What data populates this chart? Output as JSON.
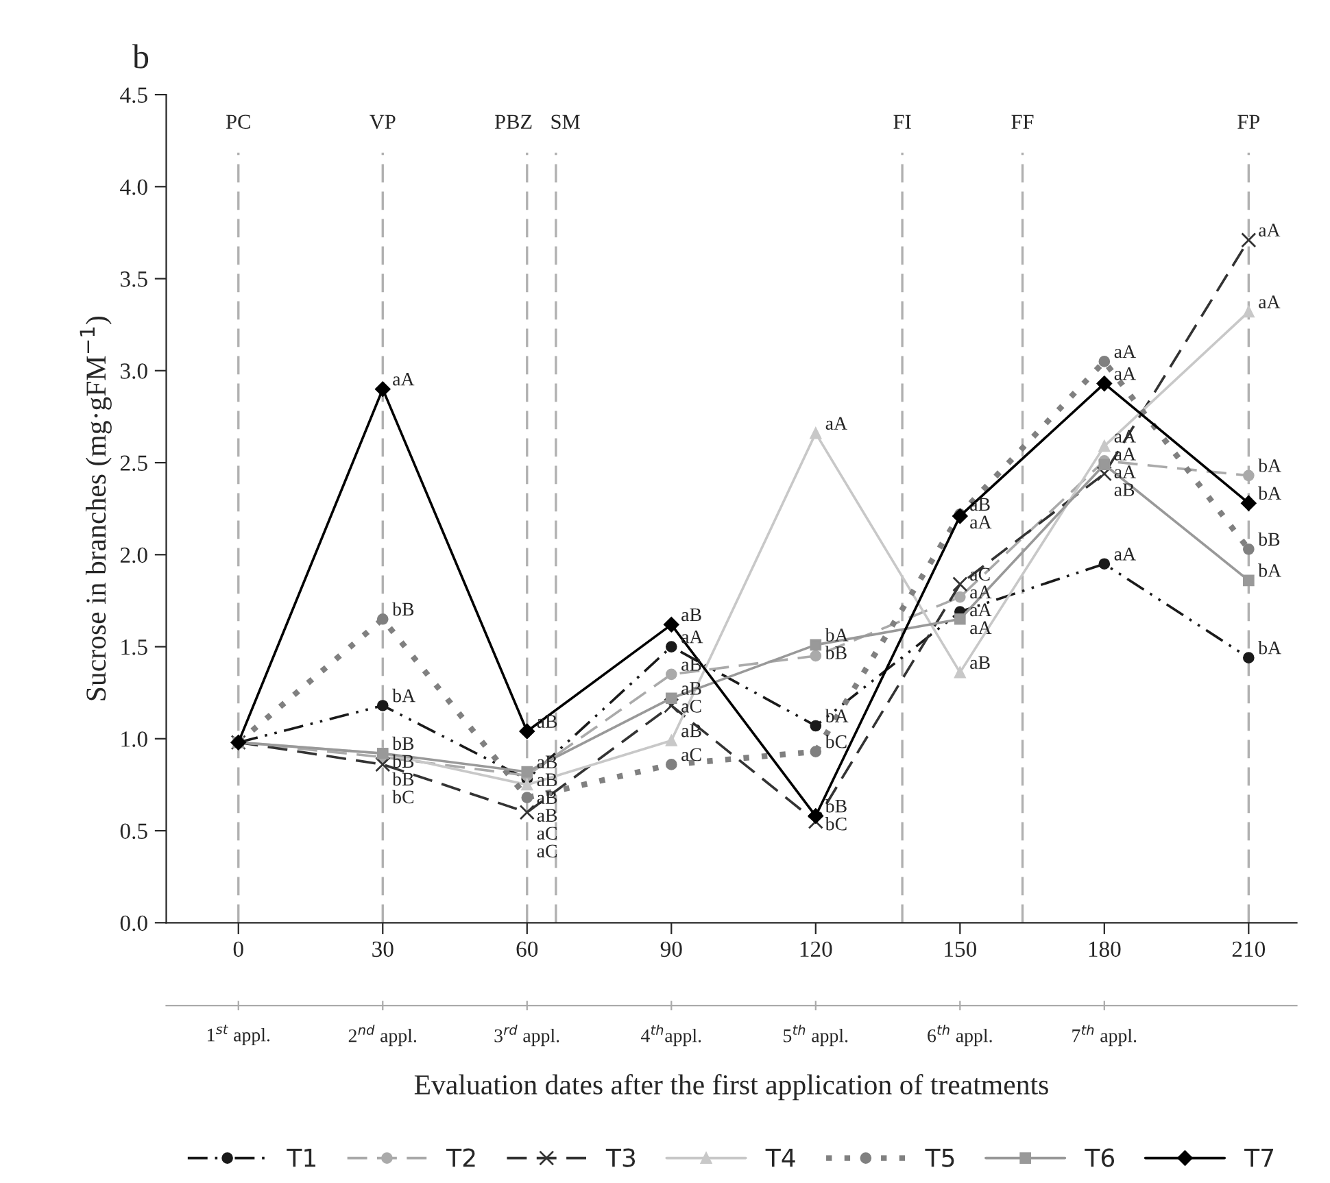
{
  "chart_data": {
    "type": "line",
    "title": "b",
    "xlabel": "Evaluation dates after the first application of treatments",
    "ylabel": "Sucrose in branches (mg·gFM$^{−1}$)",
    "x": [
      0,
      30,
      60,
      90,
      120,
      150,
      180,
      210
    ],
    "xlim": [
      -15,
      220
    ],
    "xticks": [
      0,
      30,
      60,
      90,
      120,
      150,
      180,
      210
    ],
    "annotations": [
      "1$^{st}$ appl.",
      "2$^{nd}$ appl.",
      "3$^{rd}$ appl.",
      "4$^{th}$appl.",
      "5$^{th}$ appl.",
      "6$^{th}$ appl.",
      "7$^{th}$ appl."
    ],
    "ylim": [
      0,
      4.5
    ],
    "yticks": [
      {
        "value": 0,
        "label": "0.0"
      },
      {
        "value": 0.5,
        "label": "0.5"
      },
      {
        "value": 1,
        "label": "1.0"
      },
      {
        "value": 1.5,
        "label": "1.5"
      },
      {
        "value": 2,
        "label": "2.0"
      },
      {
        "value": 2.5,
        "label": "2.5"
      },
      {
        "value": 3,
        "label": "3.0"
      },
      {
        "value": 3.5,
        "label": "3.5"
      },
      {
        "value": 4,
        "label": "4.0"
      },
      {
        "value": 4.5,
        "label": "4.5"
      }
    ],
    "grid": false,
    "legend": "bottom",
    "ref_lines": [
      {
        "axis": "x",
        "value": 0,
        "label": "PC",
        "color": "#b0b0b0",
        "line_style": "dashed"
      },
      {
        "axis": "x",
        "value": 30,
        "label": "VP",
        "color": "#b0b0b0",
        "line_style": "dashed"
      },
      {
        "axis": "x",
        "value": 60,
        "label": "PBZ",
        "color": "#b0b0b0",
        "line_style": "dashed"
      },
      {
        "axis": "x",
        "value": 66,
        "label": "SM",
        "color": "#b0b0b0",
        "line_style": "dashed"
      },
      {
        "axis": "x",
        "value": 138,
        "label": "FI",
        "color": "#b0b0b0",
        "line_style": "dashed"
      },
      {
        "axis": "x",
        "value": 163,
        "label": "FF",
        "color": "#b0b0b0",
        "line_style": "dashed"
      },
      {
        "axis": "x",
        "value": 210,
        "label": "FP",
        "color": "#b0b0b0",
        "line_style": "dashed"
      }
    ],
    "series": [
      {
        "name": "T1",
        "color": "#1a1a1a",
        "marker": "circle",
        "line_style": "dashdot",
        "values": [
          0.98,
          1.18,
          0.78,
          1.5,
          1.07,
          1.69,
          1.95,
          1.44
        ],
        "value_labels": [
          null,
          "bA",
          "aB",
          "aA",
          "bA",
          "aA",
          "aA",
          "bA"
        ]
      },
      {
        "name": "T2",
        "color": "#aaaaaa",
        "marker": "circle",
        "line_style": "dashed",
        "values": [
          0.98,
          0.9,
          0.8,
          1.35,
          1.45,
          1.77,
          2.51,
          2.43
        ],
        "value_labels": [
          null,
          "bB",
          "aB",
          "aB",
          "bB",
          "aA",
          "aA",
          "bA"
        ]
      },
      {
        "name": "T3",
        "color": "#333333",
        "marker": "cross",
        "line_style": "dashed",
        "values": [
          0.98,
          0.86,
          0.6,
          1.18,
          0.55,
          1.84,
          2.44,
          3.71
        ],
        "value_labels": [
          null,
          "bC",
          "aC",
          "aC",
          "bC",
          "aC",
          "aB",
          "aA"
        ]
      },
      {
        "name": "T4",
        "color": "#c8c8c8",
        "marker": "triangle",
        "line_style": "solid",
        "values": [
          0.98,
          0.92,
          0.75,
          0.99,
          2.66,
          1.36,
          2.59,
          3.32
        ],
        "value_labels": [
          null,
          "bB",
          "aB",
          "aB",
          "aA",
          "aB",
          "aA",
          "aA"
        ]
      },
      {
        "name": "T5",
        "color": "#808080",
        "marker": "circle",
        "line_style": "dotted",
        "values": [
          0.98,
          1.65,
          0.68,
          0.86,
          0.93,
          2.22,
          3.05,
          2.03
        ],
        "value_labels": [
          null,
          "bB",
          "aC",
          "aC",
          "bC",
          "aB",
          "aA",
          "bB"
        ]
      },
      {
        "name": "T6",
        "color": "#999999",
        "marker": "square",
        "line_style": "solid",
        "values": [
          0.98,
          0.92,
          0.82,
          1.22,
          1.51,
          1.65,
          2.49,
          1.86
        ],
        "value_labels": [
          null,
          "bB",
          "aB",
          "aB",
          "bA",
          "aA",
          "aA",
          "bA"
        ]
      },
      {
        "name": "T7",
        "color": "#000000",
        "marker": "diamond",
        "line_style": "solid",
        "values": [
          0.98,
          2.9,
          1.04,
          1.62,
          0.58,
          2.21,
          2.93,
          2.28
        ],
        "value_labels": [
          null,
          "aA",
          "aB",
          "aB",
          "bB",
          "aA",
          "aA",
          "bA"
        ]
      }
    ]
  }
}
